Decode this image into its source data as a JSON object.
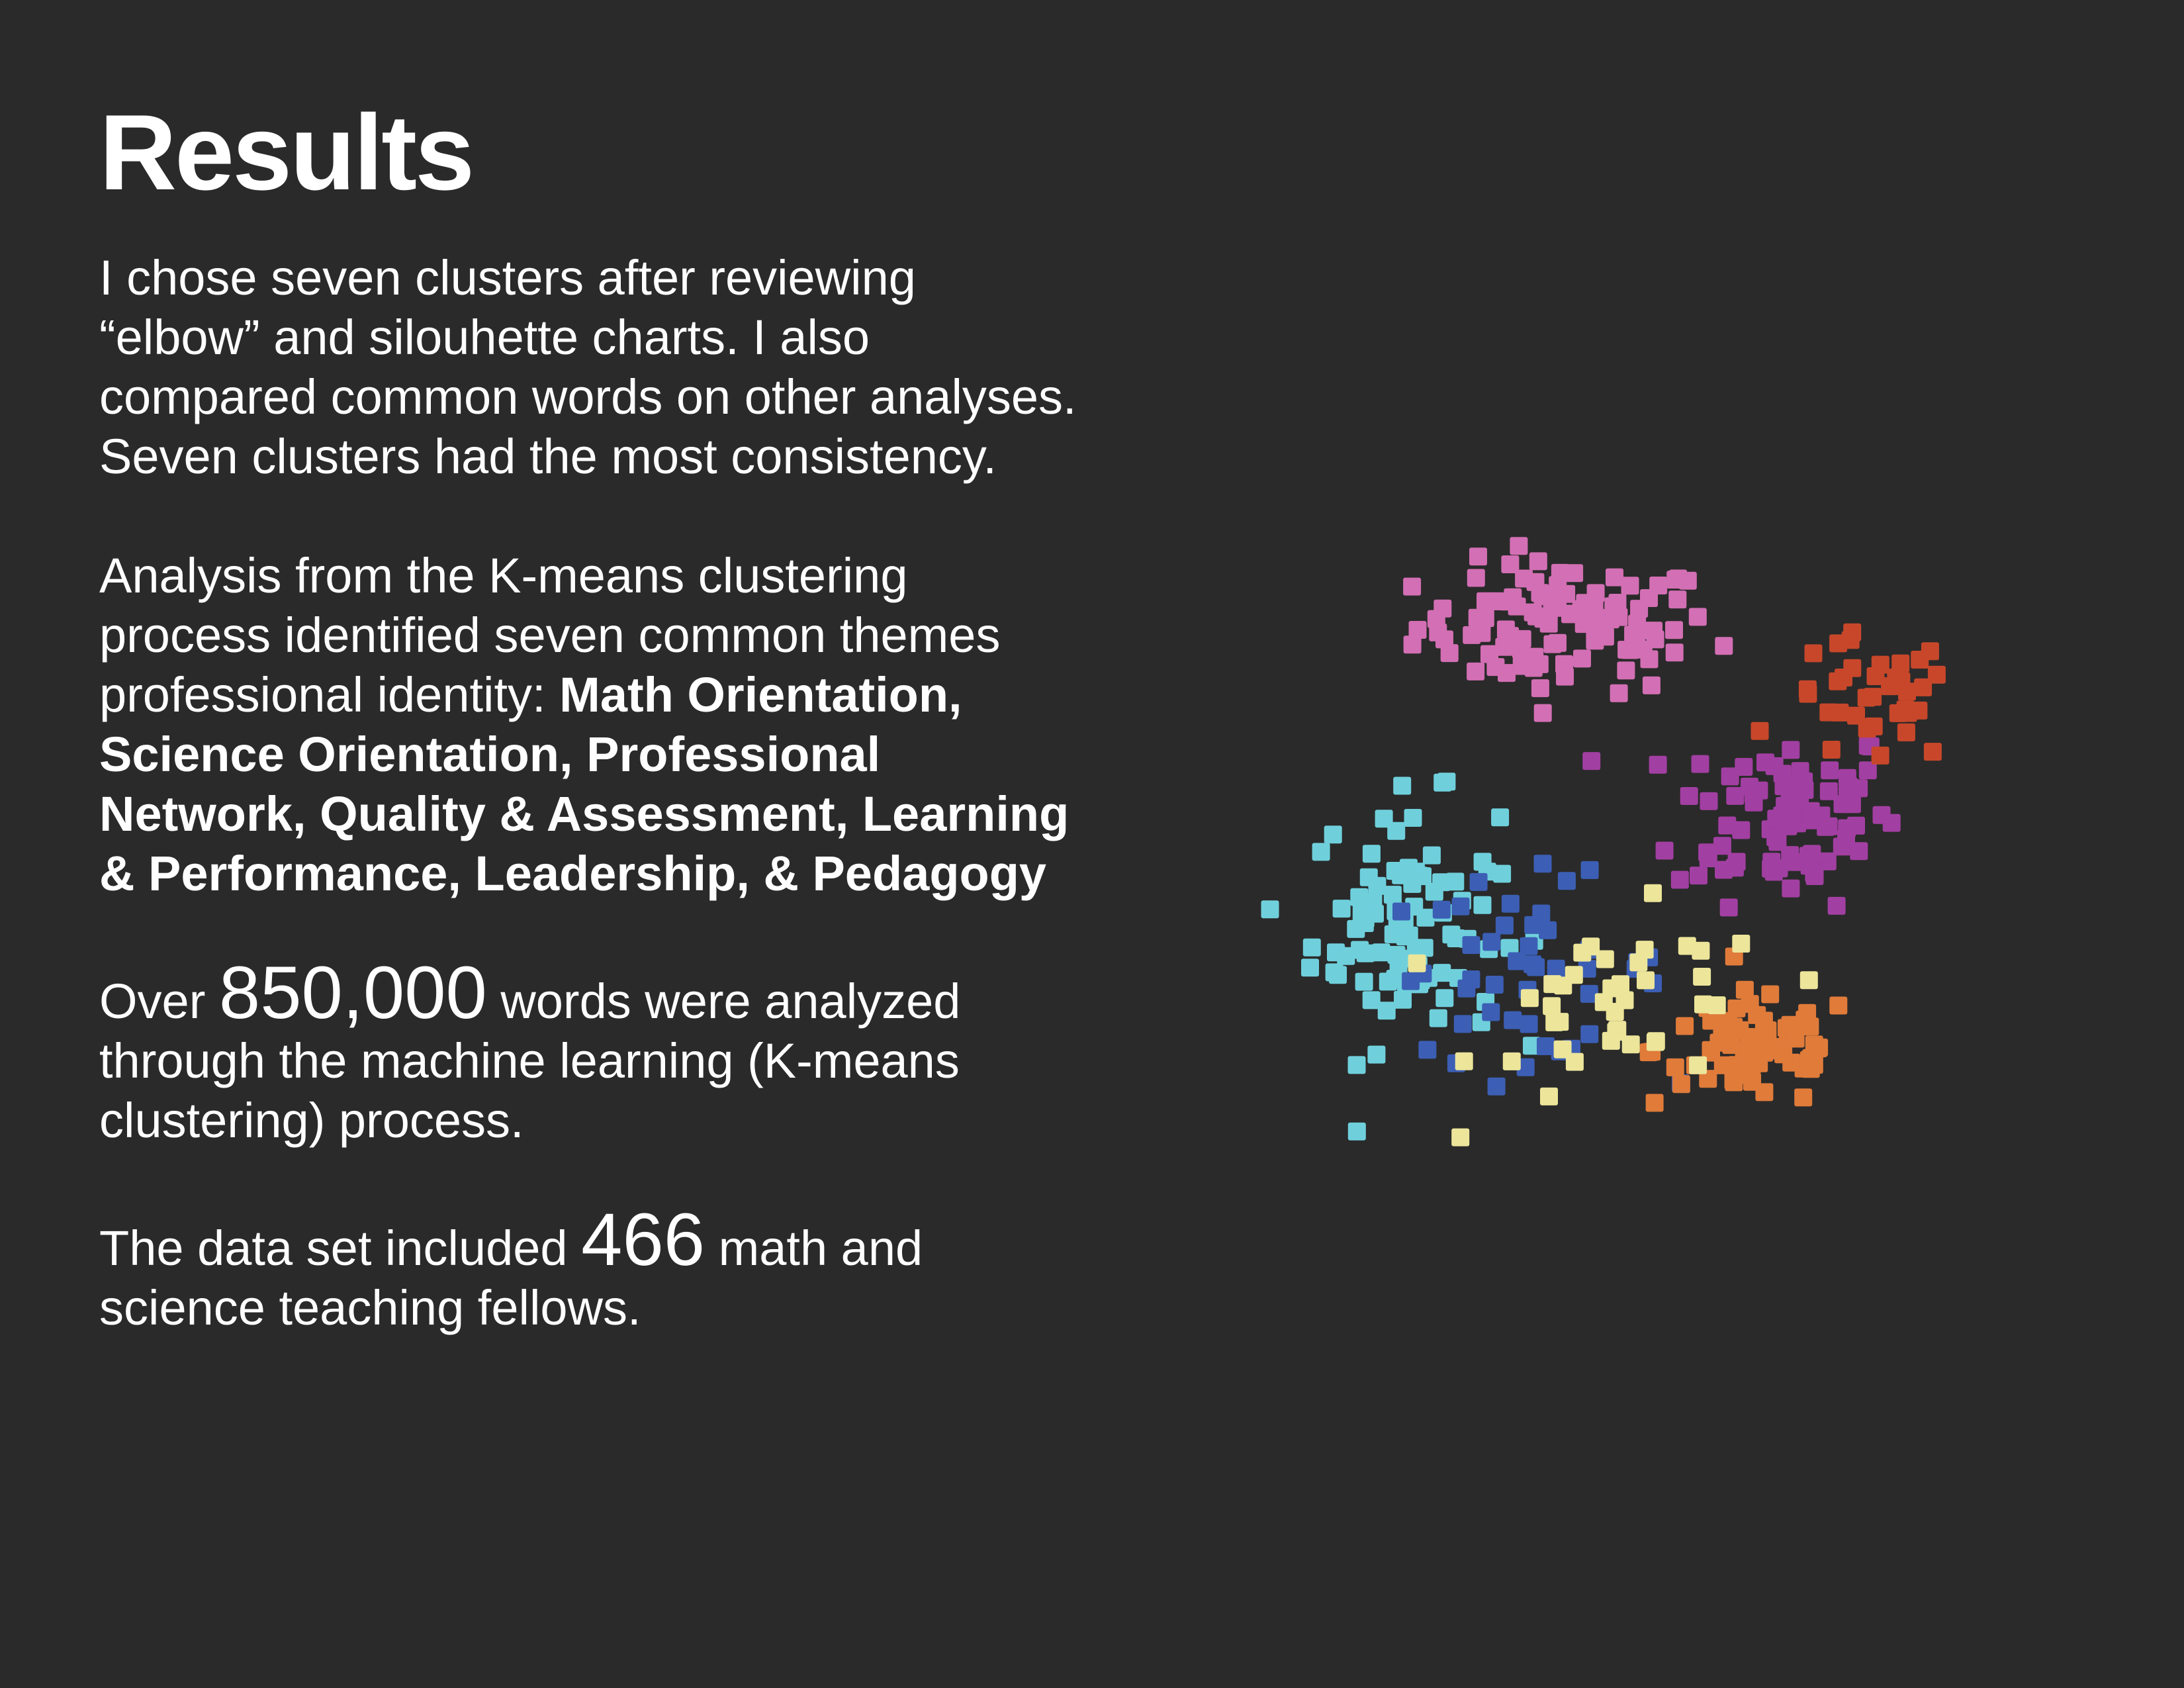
{
  "title": "Results",
  "para1": "I chose seven clusters after reviewing “elbow” and silouhette charts.  I also compared common words on other analyses.  Seven clusters had the most consistency.",
  "para2_lead": "Analysis from the K-means clustering process identified seven common themes professional identity: ",
  "para2_themes": "Math Orientation, Science Orientation, Professional Network, Quality & Assessment, Learning & Performance, Leadership, & Pedagogy",
  "para3_pre": "Over ",
  "para3_num": "850,000",
  "para3_post": " words were analyzed through the machine learning (K-means clustering) process.",
  "para4_pre": "The data set included ",
  "para4_num": "466",
  "para4_post": " math and science teaching fellows.",
  "chart_data": {
    "type": "scatter",
    "grid": false,
    "legend": "none",
    "clusters": [
      {
        "color": "#d36fb4",
        "center": [
          -0.1,
          0.62
        ],
        "spread": [
          0.32,
          0.16
        ],
        "count": 100
      },
      {
        "color": "#a23fa2",
        "center": [
          0.42,
          0.12
        ],
        "spread": [
          0.24,
          0.22
        ],
        "count": 85
      },
      {
        "color": "#6fd0dc",
        "center": [
          -0.48,
          -0.18
        ],
        "spread": [
          0.2,
          0.3
        ],
        "count": 90
      },
      {
        "color": "#3c5fb5",
        "center": [
          -0.2,
          -0.3
        ],
        "spread": [
          0.3,
          0.22
        ],
        "count": 45
      },
      {
        "color": "#e07b3a",
        "center": [
          0.35,
          -0.52
        ],
        "spread": [
          0.22,
          0.14
        ],
        "count": 70
      },
      {
        "color": "#c8472a",
        "center": [
          0.62,
          0.42
        ],
        "spread": [
          0.18,
          0.16
        ],
        "count": 36
      },
      {
        "color": "#ece59a",
        "center": [
          0.05,
          -0.42
        ],
        "spread": [
          0.32,
          0.24
        ],
        "count": 40
      }
    ]
  }
}
